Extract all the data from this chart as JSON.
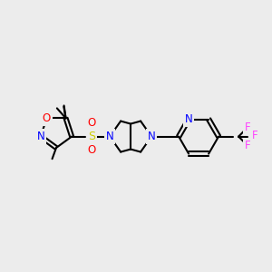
{
  "background_color": "#ececec",
  "atom_colors": {
    "N": "#0000ff",
    "O": "#ff0000",
    "S": "#cccc00",
    "F": "#ff44ff",
    "C": "#000000",
    "bond": "#000000"
  },
  "figsize": [
    3.0,
    3.0
  ],
  "dpi": 100
}
